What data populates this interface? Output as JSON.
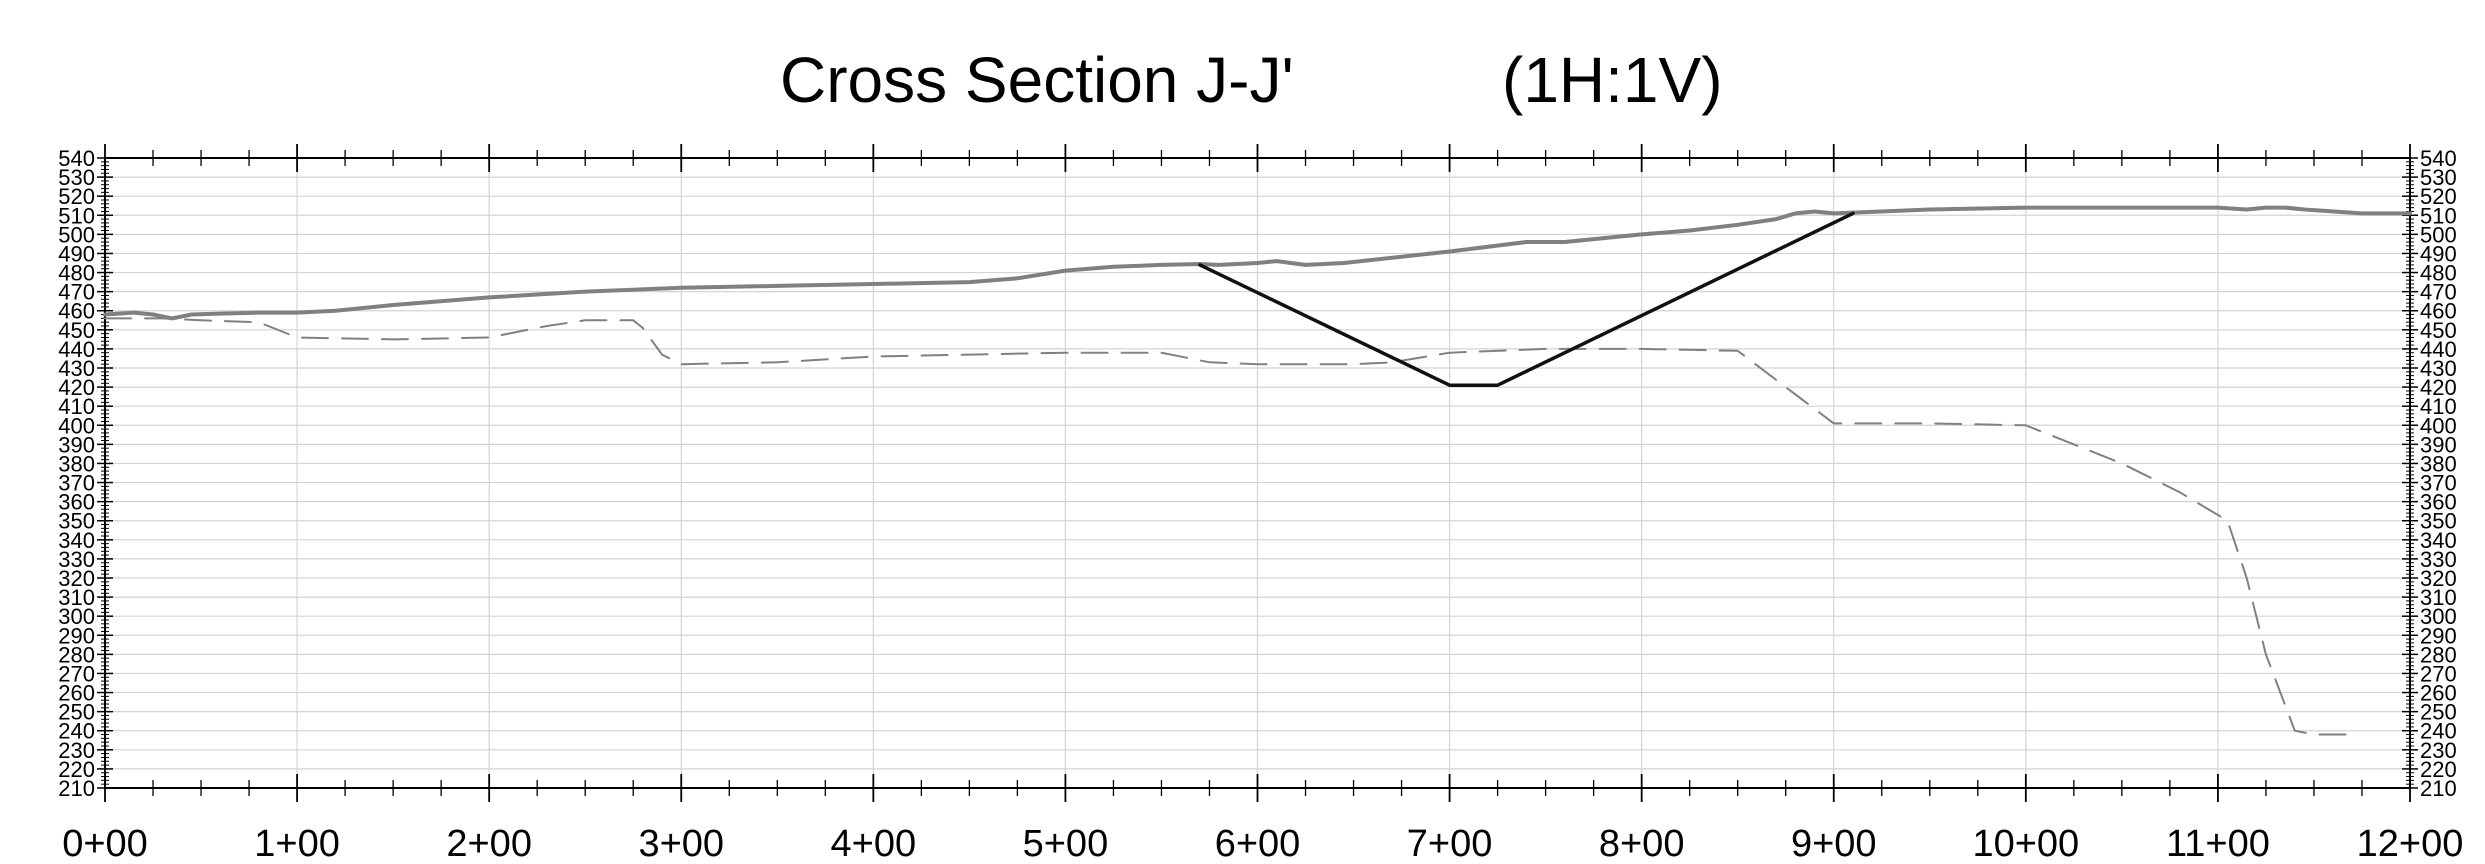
{
  "chart_data": {
    "type": "line",
    "title": "Cross Section J-J'",
    "scale_note": "(1H:1V)",
    "xlabel": "",
    "ylabel": "",
    "xlim": [
      0,
      1200
    ],
    "ylim": [
      210,
      540
    ],
    "x_ticks": [
      {
        "value": 0,
        "label": "0+00"
      },
      {
        "value": 100,
        "label": "1+00"
      },
      {
        "value": 200,
        "label": "2+00"
      },
      {
        "value": 300,
        "label": "3+00"
      },
      {
        "value": 400,
        "label": "4+00"
      },
      {
        "value": 500,
        "label": "5+00"
      },
      {
        "value": 600,
        "label": "6+00"
      },
      {
        "value": 700,
        "label": "7+00"
      },
      {
        "value": 800,
        "label": "8+00"
      },
      {
        "value": 900,
        "label": "9+00"
      },
      {
        "value": 1000,
        "label": "10+00"
      },
      {
        "value": 1100,
        "label": "11+00"
      },
      {
        "value": 1200,
        "label": "12+00"
      }
    ],
    "y_ticks": [
      210,
      220,
      230,
      240,
      250,
      260,
      270,
      280,
      290,
      300,
      310,
      320,
      330,
      340,
      350,
      360,
      370,
      380,
      390,
      400,
      410,
      420,
      430,
      440,
      450,
      460,
      470,
      480,
      490,
      500,
      510,
      520,
      530,
      540
    ],
    "grid": true,
    "series": [
      {
        "key": "ground",
        "style": "solid",
        "color": "#808080",
        "points": [
          [
            0,
            458
          ],
          [
            15,
            459
          ],
          [
            25,
            458
          ],
          [
            35,
            456
          ],
          [
            45,
            458
          ],
          [
            60,
            458.5
          ],
          [
            80,
            459
          ],
          [
            100,
            459
          ],
          [
            120,
            460
          ],
          [
            150,
            463
          ],
          [
            200,
            467
          ],
          [
            250,
            470
          ],
          [
            300,
            472
          ],
          [
            350,
            473
          ],
          [
            400,
            474
          ],
          [
            450,
            475
          ],
          [
            475,
            477
          ],
          [
            500,
            481
          ],
          [
            525,
            483
          ],
          [
            550,
            484
          ],
          [
            570,
            484.5
          ],
          [
            580,
            484
          ],
          [
            600,
            485
          ],
          [
            610,
            486
          ],
          [
            625,
            484
          ],
          [
            645,
            485
          ],
          [
            700,
            491
          ],
          [
            740,
            496
          ],
          [
            760,
            496
          ],
          [
            800,
            500
          ],
          [
            825,
            502
          ],
          [
            850,
            505
          ],
          [
            870,
            508
          ],
          [
            880,
            511
          ],
          [
            890,
            512
          ],
          [
            900,
            511
          ],
          [
            950,
            513
          ],
          [
            1000,
            514
          ],
          [
            1050,
            514
          ],
          [
            1100,
            514
          ],
          [
            1115,
            513
          ],
          [
            1125,
            514
          ],
          [
            1135,
            514
          ],
          [
            1145,
            513
          ],
          [
            1175,
            511
          ],
          [
            1200,
            511
          ]
        ]
      },
      {
        "key": "dashed",
        "style": "dashed",
        "color": "#808080",
        "points": [
          [
            0,
            456
          ],
          [
            30,
            456
          ],
          [
            50,
            455
          ],
          [
            80,
            454
          ],
          [
            100,
            446
          ],
          [
            150,
            445
          ],
          [
            200,
            446
          ],
          [
            230,
            452
          ],
          [
            250,
            455
          ],
          [
            275,
            455
          ],
          [
            280,
            451
          ],
          [
            290,
            437
          ],
          [
            300,
            432
          ],
          [
            350,
            433
          ],
          [
            400,
            436
          ],
          [
            450,
            437
          ],
          [
            500,
            438
          ],
          [
            550,
            438
          ],
          [
            575,
            433
          ],
          [
            600,
            432
          ],
          [
            650,
            432
          ],
          [
            670,
            433
          ],
          [
            700,
            438
          ],
          [
            750,
            440
          ],
          [
            800,
            440
          ],
          [
            850,
            439
          ],
          [
            875,
            420
          ],
          [
            900,
            401
          ],
          [
            950,
            401
          ],
          [
            1000,
            400
          ],
          [
            1050,
            380
          ],
          [
            1080,
            365
          ],
          [
            1105,
            350
          ],
          [
            1115,
            320
          ],
          [
            1125,
            280
          ],
          [
            1140,
            240
          ],
          [
            1150,
            238
          ],
          [
            1170,
            238
          ]
        ]
      },
      {
        "key": "excavation",
        "style": "solid",
        "color": "#111111",
        "points": [
          [
            570,
            484
          ],
          [
            700,
            421
          ],
          [
            725,
            421
          ],
          [
            910,
            511
          ]
        ]
      }
    ]
  }
}
